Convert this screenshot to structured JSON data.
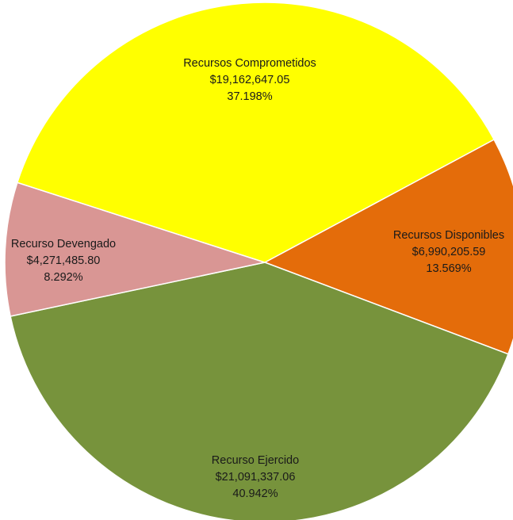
{
  "chart_data": {
    "type": "pie",
    "title": "",
    "slices": [
      {
        "label": "Recursos Disponibles",
        "amount": "$6,990,205.59",
        "percent": "13.569%",
        "value": 13.569,
        "color": "#e46c0a"
      },
      {
        "label": "Recurso Ejercido",
        "amount": "$21,091,337.06",
        "percent": "40.942%",
        "value": 40.942,
        "color": "#77933c"
      },
      {
        "label": "Recurso Devengado",
        "amount": "$4,271,485.80",
        "percent": "8.292%",
        "value": 8.292,
        "color": "#d99694"
      },
      {
        "label": "Recursos Comprometidos",
        "amount": "$19,162,647.05",
        "percent": "37.198%",
        "value": 37.198,
        "color": "#ffff00"
      }
    ]
  }
}
